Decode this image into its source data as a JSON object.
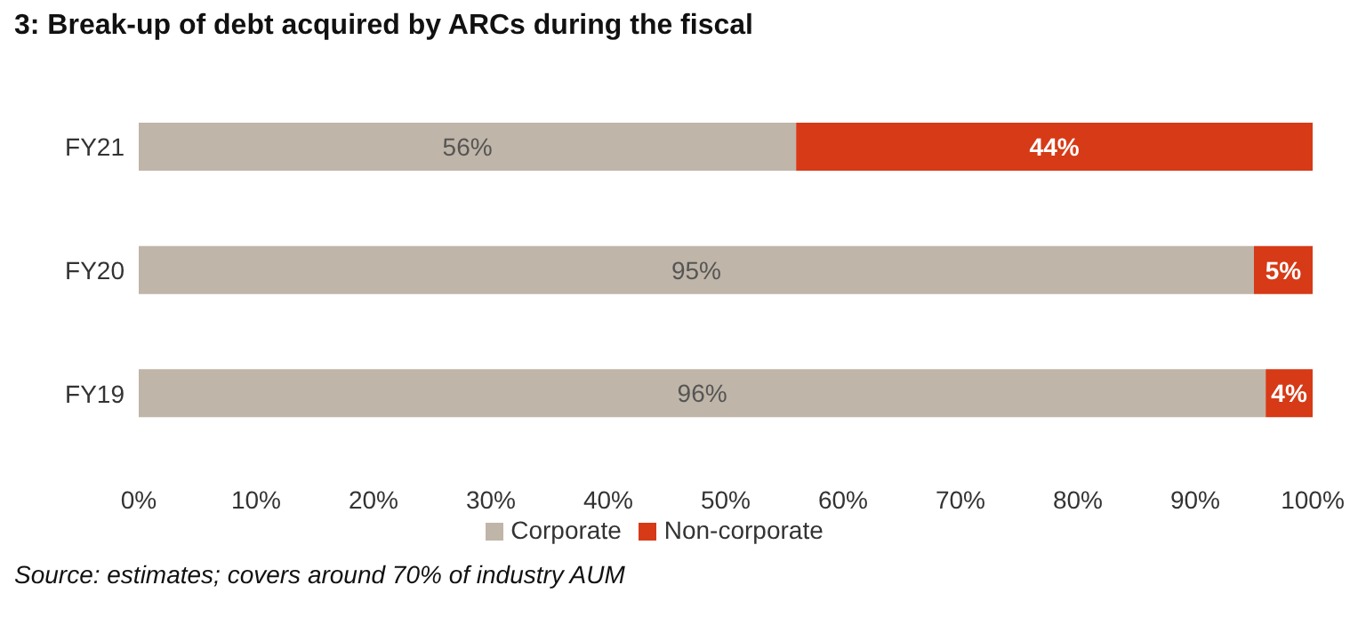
{
  "chart_data": {
    "type": "bar",
    "orientation": "horizontal",
    "stacked": true,
    "title": "3: Break-up of debt acquired by ARCs during the fiscal",
    "annotations": [
      "Source: estimates; covers around 70% of industry AUM"
    ],
    "categories": [
      "FY21",
      "FY20",
      "FY19"
    ],
    "series": [
      {
        "name": "Corporate",
        "color": "#bfb5a8",
        "values": [
          56,
          95,
          96
        ],
        "value_labels": [
          "56%",
          "95%",
          "96%"
        ]
      },
      {
        "name": "Non-corporate",
        "color": "#d63a16",
        "values": [
          44,
          5,
          4
        ],
        "value_labels": [
          "44%",
          "5%",
          "4%"
        ]
      }
    ],
    "xlim": [
      0,
      100
    ],
    "xticks": [
      {
        "value": 0,
        "label": "0%"
      },
      {
        "value": 10,
        "label": "10%"
      },
      {
        "value": 20,
        "label": "20%"
      },
      {
        "value": 30,
        "label": "30%"
      },
      {
        "value": 40,
        "label": "40%"
      },
      {
        "value": 50,
        "label": "50%"
      },
      {
        "value": 60,
        "label": "60%"
      },
      {
        "value": 70,
        "label": "70%"
      },
      {
        "value": 80,
        "label": "80%"
      },
      {
        "value": 90,
        "label": "90%"
      },
      {
        "value": 100,
        "label": "100%"
      }
    ],
    "grid": false,
    "legend": "bottom"
  }
}
